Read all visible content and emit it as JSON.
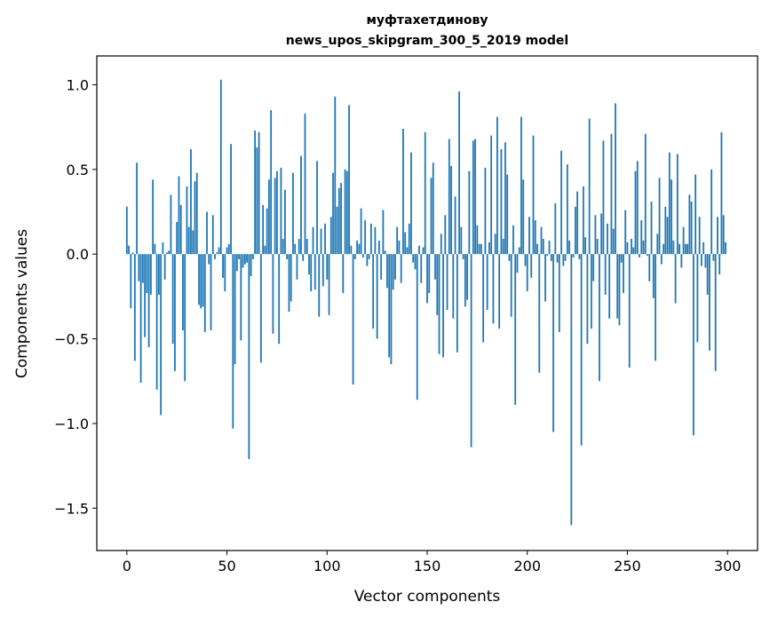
{
  "chart_data": {
    "type": "bar",
    "title": "муфтахетдинову",
    "subtitle": "news_upos_skipgram_300_5_2019 model",
    "xlabel": "Vector components",
    "ylabel": "Components values",
    "xlim": [
      -15,
      315
    ],
    "ylim": [
      -1.75,
      1.17
    ],
    "xticks": [
      0,
      50,
      100,
      150,
      200,
      250,
      300
    ],
    "xtick_labels": [
      "0",
      "50",
      "100",
      "150",
      "200",
      "250",
      "300"
    ],
    "yticks": [
      1.0,
      0.5,
      0.0,
      -0.5,
      -1.0,
      -1.5
    ],
    "ytick_labels": [
      "1.0",
      "0.5",
      "0.0",
      "−0.5",
      "−1.0",
      "−1.5"
    ],
    "grid": false,
    "bar_color": "#1f77b4",
    "series": [
      {
        "values": [
          0.28,
          0.05,
          -0.32,
          0.01,
          -0.63,
          0.54,
          -0.16,
          -0.76,
          -0.17,
          -0.49,
          -0.23,
          -0.55,
          -0.24,
          0.44,
          0.06,
          -0.8,
          -0.24,
          -0.95,
          0.07,
          -0.15,
          0.01,
          0.02,
          0.35,
          -0.53,
          -0.69,
          0.19,
          0.46,
          0.29,
          -0.45,
          -0.75,
          0.4,
          0.16,
          0.62,
          0.14,
          0.43,
          0.48,
          -0.3,
          -0.32,
          -0.31,
          -0.46,
          0.25,
          -0.06,
          -0.45,
          0.23,
          -0.03,
          0.01,
          0.04,
          1.03,
          -0.14,
          -0.22,
          0.04,
          0.06,
          0.65,
          -1.03,
          -0.65,
          -0.1,
          -0.03,
          -0.51,
          -0.08,
          -0.06,
          -0.05,
          -1.21,
          -0.13,
          -0.03,
          0.73,
          0.63,
          0.72,
          -0.64,
          0.29,
          0.05,
          0.27,
          0.44,
          0.85,
          -0.47,
          0.45,
          0.49,
          -0.53,
          0.51,
          0.09,
          0.38,
          -0.03,
          -0.34,
          -0.28,
          0.48,
          0.06,
          -0.15,
          0.09,
          0.58,
          -0.04,
          0.83,
          0.09,
          -0.12,
          -0.22,
          0.16,
          -0.21,
          0.55,
          -0.37,
          0.15,
          -0.19,
          0.18,
          -0.15,
          -0.36,
          0.22,
          0.48,
          0.93,
          0.28,
          0.39,
          0.42,
          -0.23,
          0.5,
          0.49,
          0.88,
          0.05,
          -0.77,
          -0.03,
          0.08,
          0.06,
          0.27,
          -0.02,
          0.2,
          -0.07,
          -0.03,
          0.18,
          -0.44,
          0.16,
          -0.5,
          0.08,
          -0.15,
          0.26,
          0.02,
          -0.2,
          -0.61,
          -0.65,
          -0.21,
          -0.15,
          0.16,
          0.08,
          -0.17,
          0.74,
          0.13,
          0.04,
          0.18,
          0.6,
          -0.05,
          -0.09,
          -0.86,
          0.05,
          -0.17,
          0.04,
          0.72,
          -0.29,
          -0.23,
          0.45,
          0.54,
          -0.15,
          -0.36,
          -0.59,
          0.12,
          -0.61,
          0.23,
          -0.33,
          0.68,
          0.52,
          -0.38,
          0.34,
          -0.58,
          0.96,
          0.16,
          -0.03,
          -0.31,
          -0.27,
          0.49,
          -1.14,
          0.67,
          0.68,
          0.17,
          0.06,
          0.06,
          -0.52,
          0.51,
          -0.33,
          0.07,
          0.7,
          -0.41,
          0.12,
          0.81,
          -0.44,
          0.62,
          0.09,
          0.66,
          0.47,
          -0.04,
          -0.37,
          0.17,
          -0.89,
          -0.11,
          0.04,
          0.81,
          0.44,
          -0.07,
          -0.22,
          0.22,
          -0.14,
          0.7,
          0.2,
          0.06,
          -0.7,
          0.16,
          0.09,
          -0.28,
          -0.01,
          0.08,
          -0.04,
          -1.05,
          0.3,
          -0.05,
          -0.46,
          0.61,
          -0.07,
          -0.04,
          0.53,
          0.08,
          -1.6,
          -0.02,
          0.28,
          0.37,
          -0.03,
          -1.13,
          0.4,
          0.1,
          -0.53,
          0.8,
          -0.44,
          -0.16,
          0.23,
          0.09,
          -0.75,
          0.24,
          0.67,
          -0.24,
          0.18,
          -0.38,
          0.71,
          0.15,
          0.89,
          -0.38,
          -0.42,
          -0.05,
          -0.23,
          0.26,
          0.07,
          -0.67,
          0.09,
          0.04,
          0.49,
          0.55,
          -0.02,
          0.2,
          0.08,
          0.71,
          -0.01,
          -0.16,
          0.31,
          -0.26,
          -0.63,
          0.12,
          0.45,
          -0.06,
          0.06,
          0.28,
          0.22,
          0.6,
          0.44,
          0.08,
          -0.29,
          0.59,
          0.06,
          -0.08,
          0.16,
          0.06,
          0.06,
          0.35,
          0.31,
          -1.07,
          0.47,
          -0.52,
          0.22,
          -0.07,
          0.07,
          -0.08,
          -0.24,
          -0.57,
          0.5,
          -0.04,
          -0.69,
          0.22,
          -0.12,
          0.72,
          0.23,
          0.07
        ]
      }
    ]
  }
}
